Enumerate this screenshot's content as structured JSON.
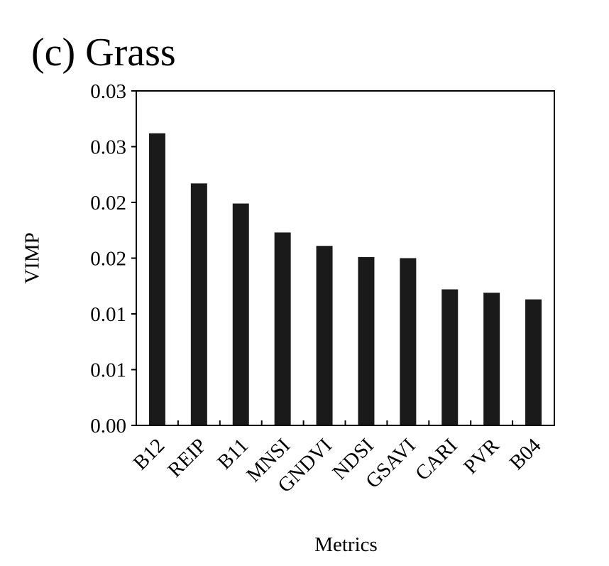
{
  "chart_data": {
    "type": "bar",
    "title": "(c) Grass",
    "xlabel": "Metrics",
    "ylabel": "VIMP",
    "categories": [
      "B12",
      "REIP",
      "B11",
      "MNSI",
      "GNDVI",
      "NDSI",
      "GSAVI",
      "CARI",
      "PVR",
      "B04"
    ],
    "values": [
      0.0262,
      0.0217,
      0.0199,
      0.0173,
      0.0161,
      0.0151,
      0.015,
      0.0122,
      0.0119,
      0.0113
    ],
    "ylim": [
      0,
      0.03
    ],
    "yticks": [
      0.0,
      0.005,
      0.01,
      0.015,
      0.02,
      0.025,
      0.03
    ],
    "ytick_labels": [
      "0.00",
      "0.01",
      "0.01",
      "0.02",
      "0.02",
      "0.03",
      "0.03"
    ],
    "grid": false,
    "legend": "none",
    "bar_color": "#1a1a1a"
  }
}
